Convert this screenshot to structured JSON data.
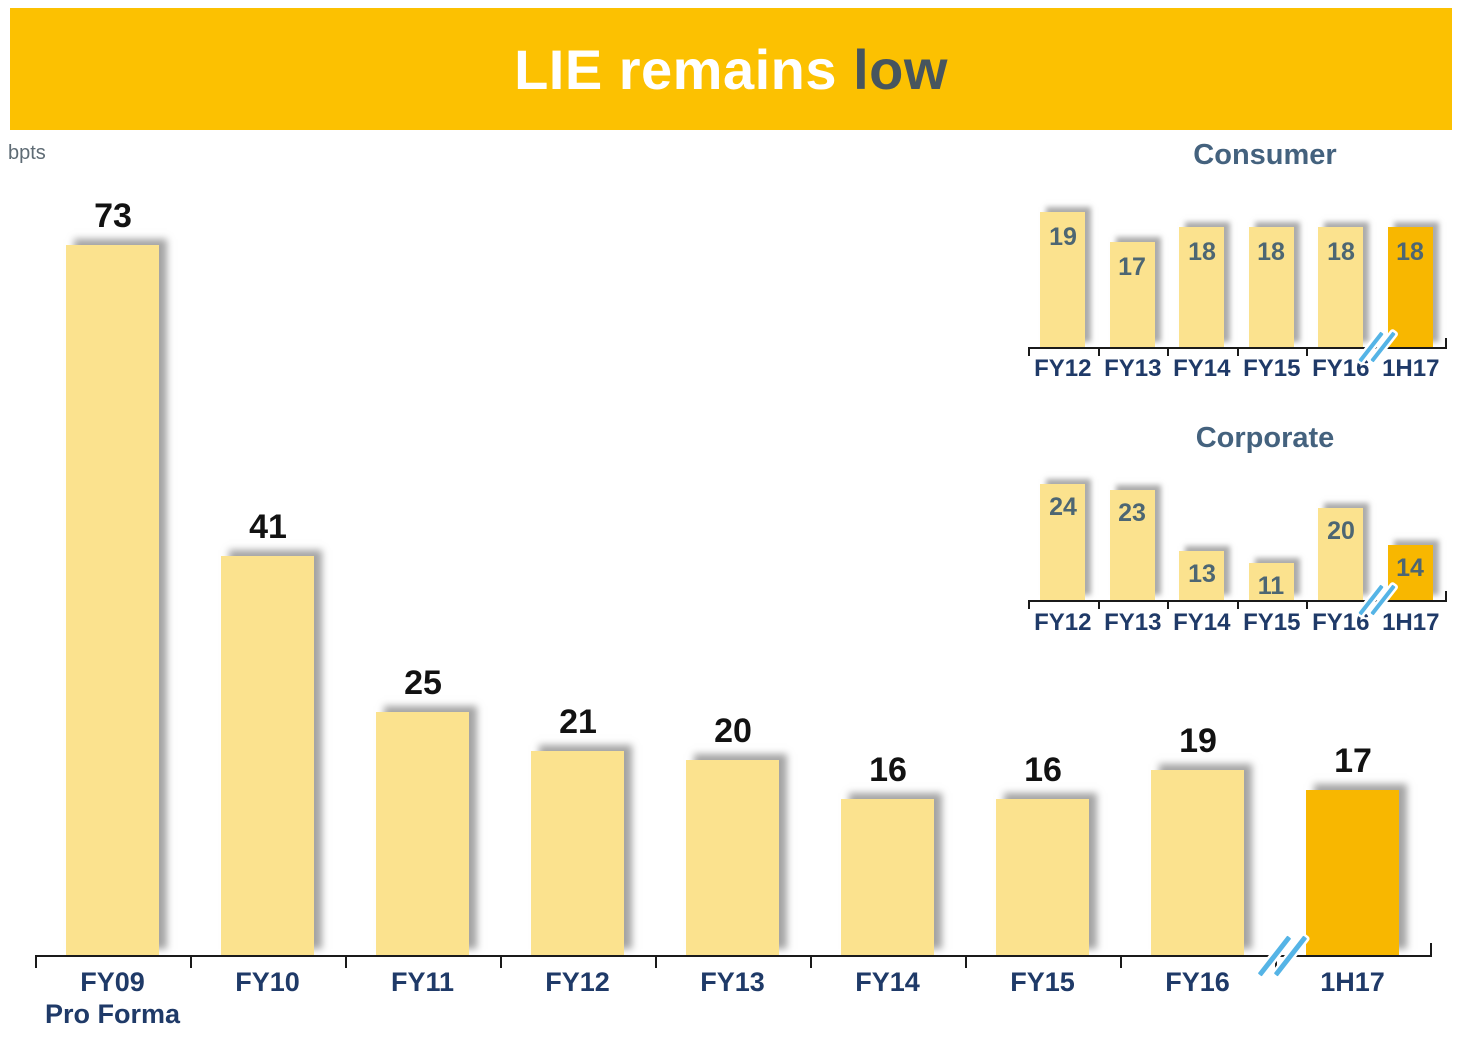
{
  "header": {
    "title_main": "LIE remains ",
    "title_accent": "low",
    "bg_color": "#FCC101",
    "main_text_color": "#FFFFFF",
    "accent_text_color": "#47555E"
  },
  "unit_label": "bpts",
  "colors": {
    "bar_fill": "#FBE28E",
    "bar_highlight": "#F8B700",
    "axis": "#1A1A1A",
    "main_value_text": "#121212",
    "main_category_text": "#1F3A68",
    "inset_value_text": "#4D6673",
    "inset_category_text": "#1F3A68",
    "inset_title_text": "#44627E",
    "break_blue": "#55B4E6",
    "unit_label_text": "#5E6B74"
  },
  "chart_data": [
    {
      "id": "main-lie",
      "type": "bar",
      "title": "",
      "unit": "bpts",
      "categories": [
        "FY09\nPro Forma",
        "FY10",
        "FY11",
        "FY12",
        "FY13",
        "FY14",
        "FY15",
        "FY16",
        "1H17"
      ],
      "values": [
        73,
        41,
        25,
        21,
        20,
        16,
        16,
        19,
        17
      ],
      "highlight_last_bar": true,
      "axis_break_before_last": true,
      "value_labels": "above",
      "ylim": [
        0,
        75
      ],
      "grid": false,
      "legend": "none"
    },
    {
      "id": "consumer",
      "type": "bar",
      "title": "Consumer",
      "unit": "bpts",
      "categories": [
        "FY12",
        "FY13",
        "FY14",
        "FY15",
        "FY16",
        "1H17"
      ],
      "values": [
        19,
        17,
        18,
        18,
        18,
        18
      ],
      "highlight_last_bar": true,
      "axis_break_before_last": true,
      "value_labels": "inside",
      "ylim": [
        10,
        23
      ],
      "grid": false,
      "legend": "none"
    },
    {
      "id": "corporate",
      "type": "bar",
      "title": "Corporate",
      "unit": "bpts",
      "categories": [
        "FY12",
        "FY13",
        "FY14",
        "FY15",
        "FY16",
        "1H17"
      ],
      "values": [
        24,
        23,
        13,
        11,
        20,
        14
      ],
      "highlight_last_bar": true,
      "axis_break_before_last": true,
      "value_labels": "inside",
      "ylim": [
        5,
        29
      ],
      "grid": false,
      "legend": "none"
    }
  ]
}
